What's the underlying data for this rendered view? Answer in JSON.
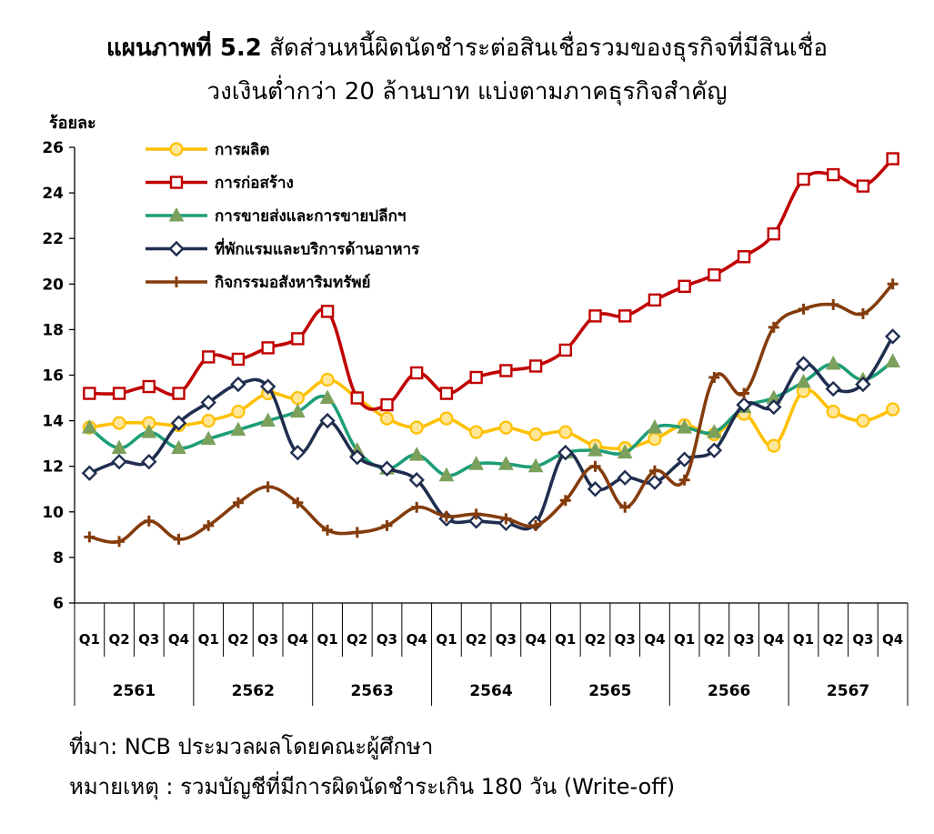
{
  "title": {
    "label": "แผนภาพที่ 5.2",
    "line1": "สัดส่วนหนี้ผิดนัดชำระต่อสินเชื่อรวมของธุรกิจที่มีสินเชื่อ",
    "line2": "วงเงินต่ำกว่า 20 ล้านบาท แบ่งตามภาคธุรกิจสำคัญ"
  },
  "chart_data": {
    "type": "line",
    "ylabel": "ร้อยละ",
    "ylim": [
      6,
      26
    ],
    "yticks": [
      6,
      8,
      10,
      12,
      14,
      16,
      18,
      20,
      22,
      24,
      26
    ],
    "grid": false,
    "legend_position": "top-left",
    "quarters": [
      "Q1",
      "Q2",
      "Q3",
      "Q4",
      "Q1",
      "Q2",
      "Q3",
      "Q4",
      "Q1",
      "Q2",
      "Q3",
      "Q4",
      "Q1",
      "Q2",
      "Q3",
      "Q4",
      "Q1",
      "Q2",
      "Q3",
      "Q4",
      "Q1",
      "Q2",
      "Q3",
      "Q4",
      "Q1",
      "Q2",
      "Q3",
      "Q4"
    ],
    "years": [
      "2561",
      "2562",
      "2563",
      "2564",
      "2565",
      "2566",
      "2567"
    ],
    "series": [
      {
        "name": "การผลิต",
        "color": "#FFC000",
        "marker": "circle",
        "values": [
          13.7,
          13.9,
          13.9,
          13.8,
          14.0,
          14.4,
          15.2,
          15.0,
          15.8,
          15.0,
          14.1,
          13.7,
          14.1,
          13.5,
          13.7,
          13.4,
          13.5,
          12.9,
          12.8,
          13.2,
          13.8,
          13.4,
          14.3,
          12.9,
          15.3,
          14.4,
          14.0,
          14.5
        ]
      },
      {
        "name": "การก่อสร้าง",
        "color": "#C00000",
        "marker": "square",
        "values": [
          15.2,
          15.2,
          15.5,
          15.2,
          16.8,
          16.7,
          17.2,
          17.6,
          18.8,
          15.0,
          14.7,
          16.1,
          15.2,
          15.9,
          16.2,
          16.4,
          17.1,
          18.6,
          18.6,
          19.3,
          19.9,
          20.4,
          21.2,
          22.2,
          24.6,
          24.8,
          24.3,
          25.5
        ]
      },
      {
        "name": "การขายส่งและการขายปลีกฯ",
        "color": "#1E9E78",
        "marker": "triangle",
        "values": [
          13.7,
          12.8,
          13.5,
          12.8,
          13.2,
          13.6,
          14.0,
          14.4,
          15.0,
          12.7,
          11.9,
          12.5,
          11.6,
          12.1,
          12.1,
          12.0,
          12.6,
          12.7,
          12.6,
          13.7,
          13.7,
          13.5,
          14.6,
          15.0,
          15.7,
          16.5,
          15.8,
          16.6
        ]
      },
      {
        "name": "ที่พักแรมและบริการด้านอาหาร",
        "color": "#1F2D4F",
        "marker": "diamond",
        "values": [
          11.7,
          12.2,
          12.2,
          13.9,
          14.8,
          15.6,
          15.5,
          12.6,
          14.0,
          12.4,
          11.9,
          11.4,
          9.7,
          9.6,
          9.5,
          9.5,
          12.6,
          11.0,
          11.5,
          11.3,
          12.3,
          12.7,
          14.7,
          14.6,
          16.5,
          15.4,
          15.6,
          17.7
        ]
      },
      {
        "name": "กิจกรรมอสังหาริมทรัพย์",
        "color": "#843C0C",
        "marker": "plus",
        "values": [
          8.9,
          8.7,
          9.6,
          8.8,
          9.4,
          10.4,
          11.1,
          10.4,
          9.2,
          9.1,
          9.4,
          10.2,
          9.8,
          9.9,
          9.7,
          9.4,
          10.5,
          12.0,
          10.2,
          11.8,
          11.4,
          15.9,
          15.2,
          18.1,
          18.9,
          19.1,
          18.7,
          20.0
        ]
      }
    ]
  },
  "notes": {
    "source": "ที่มา: NCB ประมวลผลโดยคณะผู้ศึกษา",
    "remark": "หมายเหตุ : รวมบัญชีที่มีการผิดนัดชำระเกิน 180 วัน (Write-off)"
  }
}
